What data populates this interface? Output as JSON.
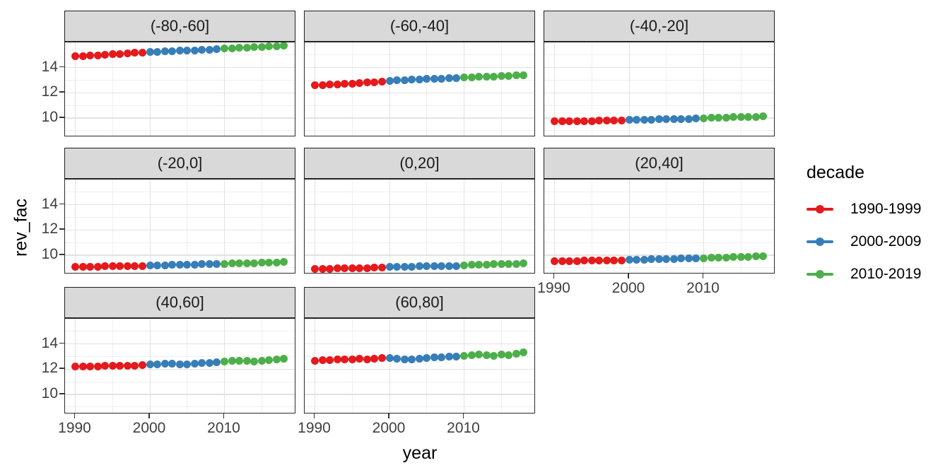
{
  "chart_data": {
    "type": "scatter",
    "title": "",
    "xlabel": "year",
    "ylabel": "rev_fac",
    "x_ticks": [
      1990,
      2000,
      2010
    ],
    "x_minor_ticks": [
      1995,
      2005,
      2015
    ],
    "y_ticks": [
      10,
      12,
      14
    ],
    "y_minor_ticks": [
      9,
      11,
      13,
      15
    ],
    "xlim": [
      1988.6,
      2019.6
    ],
    "ylim": [
      8.5,
      16.0
    ],
    "grid": "on",
    "years": [
      1990,
      1991,
      1992,
      1993,
      1994,
      1995,
      1996,
      1997,
      1998,
      1999,
      2000,
      2001,
      2002,
      2003,
      2004,
      2005,
      2006,
      2007,
      2008,
      2009,
      2010,
      2011,
      2012,
      2013,
      2014,
      2015,
      2016,
      2017,
      2018
    ],
    "legend": {
      "title": "decade",
      "position": "right",
      "entries": [
        {
          "label": "1990-1999",
          "color": "#E41A1C"
        },
        {
          "label": "2000-2009",
          "color": "#377EB8"
        },
        {
          "label": "2010-2019",
          "color": "#4DAF4A"
        }
      ]
    },
    "colors": {
      "strip_fill": "#d9d9d9",
      "panel_border": "#2b2b2b",
      "grid_major": "#e2e2e2",
      "grid_minor": "#efefef",
      "tick_text": "#404040"
    },
    "facets": [
      {
        "label": "(-80,-60]",
        "row": 0,
        "col": 0,
        "x_axis": false,
        "values": [
          14.9,
          14.92,
          14.95,
          14.98,
          15.01,
          15.05,
          15.08,
          15.12,
          15.16,
          15.2,
          15.23,
          15.25,
          15.28,
          15.3,
          15.33,
          15.35,
          15.38,
          15.4,
          15.43,
          15.46,
          15.5,
          15.53,
          15.56,
          15.59,
          15.62,
          15.65,
          15.68,
          15.71,
          15.74
        ]
      },
      {
        "label": "(-60,-40]",
        "row": 0,
        "col": 1,
        "x_axis": false,
        "values": [
          12.58,
          12.61,
          12.64,
          12.67,
          12.7,
          12.74,
          12.77,
          12.81,
          12.84,
          12.88,
          12.94,
          12.97,
          13.0,
          13.03,
          13.06,
          13.08,
          13.11,
          13.13,
          13.16,
          13.18,
          13.2,
          13.23,
          13.25,
          13.28,
          13.3,
          13.33,
          13.35,
          13.38,
          13.4
        ]
      },
      {
        "label": "(-40,-20]",
        "row": 0,
        "col": 2,
        "x_axis": false,
        "values": [
          9.72,
          9.73,
          9.74,
          9.74,
          9.75,
          9.76,
          9.77,
          9.78,
          9.79,
          9.8,
          9.84,
          9.85,
          9.86,
          9.87,
          9.88,
          9.89,
          9.9,
          9.91,
          9.93,
          9.94,
          9.97,
          9.99,
          10.01,
          10.03,
          10.05,
          10.06,
          10.08,
          10.1,
          10.12
        ]
      },
      {
        "label": "(-20,0]",
        "row": 1,
        "col": 0,
        "x_axis": false,
        "values": [
          9.06,
          9.07,
          9.07,
          9.08,
          9.09,
          9.1,
          9.11,
          9.12,
          9.13,
          9.14,
          9.18,
          9.19,
          9.2,
          9.21,
          9.22,
          9.23,
          9.25,
          9.26,
          9.27,
          9.28,
          9.31,
          9.33,
          9.34,
          9.36,
          9.37,
          9.39,
          9.4,
          9.42,
          9.43
        ]
      },
      {
        "label": "(0,20]",
        "row": 1,
        "col": 1,
        "x_axis": false,
        "values": [
          8.9,
          8.91,
          8.92,
          8.93,
          8.94,
          8.95,
          8.96,
          8.97,
          8.98,
          8.99,
          9.04,
          9.05,
          9.06,
          9.08,
          9.09,
          9.1,
          9.11,
          9.12,
          9.13,
          9.14,
          9.19,
          9.21,
          9.23,
          9.24,
          9.26,
          9.28,
          9.29,
          9.31,
          9.32
        ]
      },
      {
        "label": "(20,40]",
        "row": 1,
        "col": 2,
        "x_axis": true,
        "values": [
          9.5,
          9.51,
          9.52,
          9.53,
          9.54,
          9.55,
          9.56,
          9.57,
          9.58,
          9.59,
          9.63,
          9.64,
          9.65,
          9.66,
          9.67,
          9.68,
          9.69,
          9.71,
          9.72,
          9.73,
          9.76,
          9.78,
          9.8,
          9.81,
          9.83,
          9.85,
          9.86,
          9.88,
          9.89
        ]
      },
      {
        "label": "(40,60]",
        "row": 2,
        "col": 0,
        "x_axis": true,
        "values": [
          12.18,
          12.21,
          12.23,
          12.22,
          12.25,
          12.24,
          12.27,
          12.26,
          12.29,
          12.32,
          12.36,
          12.39,
          12.41,
          12.42,
          12.4,
          12.38,
          12.43,
          12.47,
          12.5,
          12.54,
          12.6,
          12.63,
          12.66,
          12.64,
          12.62,
          12.67,
          12.72,
          12.76,
          12.8
        ]
      },
      {
        "label": "(60,80]",
        "row": 2,
        "col": 1,
        "x_axis": true,
        "values": [
          12.68,
          12.71,
          12.74,
          12.77,
          12.75,
          12.79,
          12.82,
          12.78,
          12.81,
          12.86,
          12.88,
          12.82,
          12.78,
          12.76,
          12.8,
          12.9,
          12.92,
          12.95,
          12.97,
          13.0,
          13.05,
          13.1,
          13.14,
          13.1,
          13.03,
          13.15,
          13.12,
          13.2,
          13.33
        ]
      }
    ]
  }
}
